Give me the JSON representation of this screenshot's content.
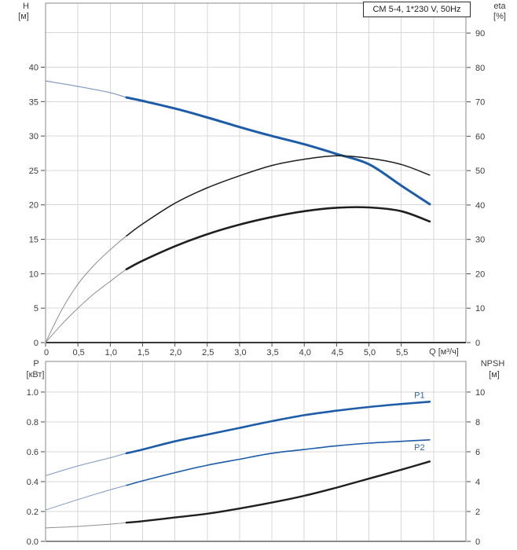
{
  "pump_model_badge": "CM 5-4, 1*230 V, 50Hz",
  "colors": {
    "curve_blue": "#1d5ca8",
    "curve_blue_thin": "#7d97c2",
    "curve_black": "#1f1f1f",
    "curve_black_thin": "#8f8f8f",
    "grid": "#d8d8d8",
    "frame": "#8a8a8a",
    "tick_text": "#3c3c3c",
    "series_label_blue": "#3064a8"
  },
  "chart_data": [
    {
      "type": "line",
      "name": "pump-performance-chart",
      "left_axis": {
        "label": "H",
        "unit": "[м]",
        "tick_labels": [
          "0",
          "5",
          "10",
          "15",
          "20",
          "25",
          "30",
          "35",
          "40"
        ],
        "tick_values": [
          0,
          5,
          10,
          15,
          20,
          25,
          30,
          35,
          40
        ],
        "range": [
          0,
          49.3
        ],
        "gridline_step": 5
      },
      "right_axis": {
        "label": "eta",
        "unit": "[%]",
        "tick_labels": [
          "0",
          "10",
          "20",
          "30",
          "40",
          "50",
          "60",
          "70",
          "80",
          "90"
        ],
        "tick_values": [
          0,
          10,
          20,
          30,
          40,
          50,
          60,
          70,
          80,
          90
        ],
        "range": [
          0,
          98.7
        ]
      },
      "x_axis": {
        "label": "Q [м³/ч]",
        "tick_labels": [
          "0",
          "0,5",
          "1,0",
          "1,5",
          "2,0",
          "2,5",
          "3,0",
          "3,5",
          "4,0",
          "4,5",
          "5,0",
          "5,5"
        ],
        "tick_values": [
          0,
          0.5,
          1,
          1.5,
          2,
          2.5,
          3,
          3.5,
          4,
          4.5,
          5,
          5.5
        ],
        "range": [
          0,
          6.5
        ],
        "gridline_step": 0.5
      },
      "series": [
        {
          "id": "head",
          "name": "H head curve",
          "axis": "left",
          "color": "#1d5ca8",
          "thin_color": "#7d97c2",
          "thin_width": 1.2,
          "thick_width": 3,
          "thick_from": 1.25,
          "points": [
            [
              0,
              38
            ],
            [
              0.5,
              37.2
            ],
            [
              1,
              36.3
            ],
            [
              1.25,
              35.6
            ],
            [
              1.5,
              35.1
            ],
            [
              2,
              34
            ],
            [
              2.5,
              32.7
            ],
            [
              3,
              31.3
            ],
            [
              3.5,
              30
            ],
            [
              4,
              28.8
            ],
            [
              4.5,
              27.4
            ],
            [
              5,
              25.9
            ],
            [
              5.5,
              22.8
            ],
            [
              5.94,
              20.1
            ]
          ]
        },
        {
          "id": "eta-pump",
          "name": "eta pump efficiency curve",
          "axis": "right",
          "color": "#1f1f1f",
          "thin_color": "#8f8f8f",
          "thin_width": 1,
          "thick_width": 1.5,
          "thick_from": 1.25,
          "points": [
            [
              0,
              0
            ],
            [
              0.25,
              9.5
            ],
            [
              0.5,
              17
            ],
            [
              0.75,
              22.5
            ],
            [
              1,
              27
            ],
            [
              1.25,
              31
            ],
            [
              1.5,
              34.5
            ],
            [
              2,
              40.5
            ],
            [
              2.5,
              45
            ],
            [
              3,
              48.5
            ],
            [
              3.5,
              51.5
            ],
            [
              4,
              53.3
            ],
            [
              4.5,
              54.3
            ],
            [
              5,
              53.6
            ],
            [
              5.5,
              51.8
            ],
            [
              5.94,
              48.7
            ]
          ]
        },
        {
          "id": "eta-total",
          "name": "eta pump plus motor efficiency curve",
          "axis": "right",
          "color": "#1f1f1f",
          "thin_color": "#8f8f8f",
          "thin_width": 1,
          "thick_width": 2.6,
          "thick_from": 1.25,
          "points": [
            [
              0,
              0
            ],
            [
              0.25,
              5.3
            ],
            [
              0.5,
              10
            ],
            [
              0.75,
              14.2
            ],
            [
              1,
              17.8
            ],
            [
              1.25,
              21.3
            ],
            [
              1.5,
              23.8
            ],
            [
              2,
              28
            ],
            [
              2.5,
              31.5
            ],
            [
              3,
              34.3
            ],
            [
              3.5,
              36.5
            ],
            [
              4,
              38.2
            ],
            [
              4.5,
              39.2
            ],
            [
              5,
              39.3
            ],
            [
              5.5,
              38.2
            ],
            [
              5.94,
              35.2
            ]
          ]
        }
      ]
    },
    {
      "type": "line",
      "name": "power-npsh-chart",
      "left_axis": {
        "label": "P",
        "unit": "[кВт]",
        "tick_labels": [
          "0.0",
          "0.2",
          "0.4",
          "0.6",
          "0.8",
          "1.0"
        ],
        "tick_values": [
          0,
          0.2,
          0.4,
          0.6,
          0.8,
          1
        ],
        "range": [
          0,
          1.205
        ],
        "gridline_step": 0.2
      },
      "right_axis": {
        "label": "NPSH",
        "unit": "[м]",
        "tick_labels": [
          "0",
          "2",
          "4",
          "6",
          "8",
          "10"
        ],
        "tick_values": [
          0,
          2,
          4,
          6,
          8,
          10
        ],
        "range": [
          0,
          12.05
        ]
      },
      "x_axis": {
        "tick_labels": [],
        "tick_values": [],
        "range": [
          0,
          6.5
        ],
        "gridline_step": 0.5
      },
      "series": [
        {
          "id": "p1",
          "name": "P1 input power curve",
          "axis": "left",
          "label": "P1",
          "color": "#1d5ca8",
          "thin_color": "#7d97c2",
          "thin_width": 1,
          "thick_width": 2.6,
          "thick_from": 1.25,
          "points": [
            [
              0,
              0.44
            ],
            [
              0.5,
              0.505
            ],
            [
              1,
              0.56
            ],
            [
              1.25,
              0.59
            ],
            [
              1.5,
              0.615
            ],
            [
              2,
              0.67
            ],
            [
              2.5,
              0.715
            ],
            [
              3,
              0.76
            ],
            [
              3.5,
              0.805
            ],
            [
              4,
              0.845
            ],
            [
              4.5,
              0.875
            ],
            [
              5,
              0.9
            ],
            [
              5.5,
              0.92
            ],
            [
              5.94,
              0.935
            ]
          ]
        },
        {
          "id": "p2",
          "name": "P2 shaft power curve",
          "axis": "left",
          "label": "P2",
          "color": "#1d5ca8",
          "thin_color": "#7d97c2",
          "thin_width": 1,
          "thick_width": 1.6,
          "thick_from": 1.25,
          "points": [
            [
              0,
              0.21
            ],
            [
              0.5,
              0.28
            ],
            [
              1,
              0.345
            ],
            [
              1.25,
              0.375
            ],
            [
              1.5,
              0.405
            ],
            [
              2,
              0.46
            ],
            [
              2.5,
              0.51
            ],
            [
              3,
              0.55
            ],
            [
              3.5,
              0.59
            ],
            [
              4,
              0.615
            ],
            [
              4.5,
              0.64
            ],
            [
              5,
              0.658
            ],
            [
              5.5,
              0.67
            ],
            [
              5.94,
              0.68
            ]
          ]
        },
        {
          "id": "npsh",
          "name": "NPSH curve",
          "axis": "right",
          "color": "#1f1f1f",
          "thin_color": "#8f8f8f",
          "thin_width": 1,
          "thick_width": 2.4,
          "thick_from": 1.25,
          "points": [
            [
              0,
              0.9
            ],
            [
              0.5,
              1
            ],
            [
              1,
              1.15
            ],
            [
              1.25,
              1.25
            ],
            [
              1.5,
              1.35
            ],
            [
              2,
              1.6
            ],
            [
              2.5,
              1.85
            ],
            [
              3,
              2.2
            ],
            [
              3.5,
              2.6
            ],
            [
              4,
              3.05
            ],
            [
              4.5,
              3.6
            ],
            [
              5,
              4.2
            ],
            [
              5.5,
              4.8
            ],
            [
              5.94,
              5.35
            ]
          ]
        }
      ]
    }
  ]
}
